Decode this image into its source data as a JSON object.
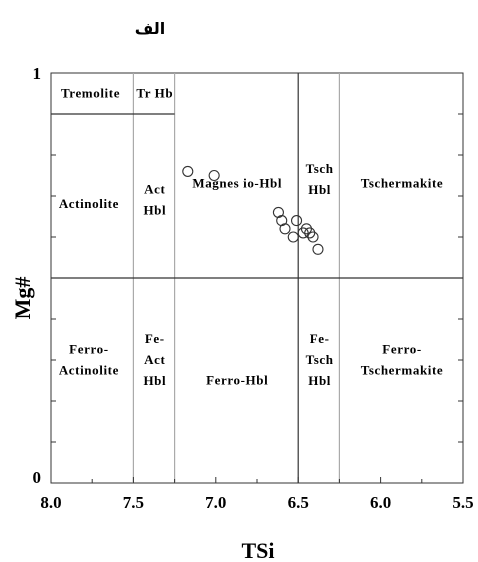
{
  "heading": "الف",
  "chart_data": {
    "type": "scatter",
    "title": "الف",
    "xlabel": "TSi",
    "ylabel": "Mg#",
    "xlim": [
      8.0,
      5.5
    ],
    "ylim": [
      0,
      1
    ],
    "x_reversed": true,
    "x_ticks": [
      "8.0",
      "7.5",
      "7.0",
      "6.5",
      "6.0",
      "5.5"
    ],
    "y_ticks": [
      "0",
      "1"
    ],
    "grid": false,
    "legend": "none",
    "divider_x": [
      7.5,
      7.25,
      6.5,
      6.25
    ],
    "divider_y": [
      0.5,
      0.9
    ],
    "fields": [
      {
        "lines": [
          "Tremolite"
        ],
        "x": 7.76,
        "y": 0.95
      },
      {
        "lines": [
          "Tr Hb"
        ],
        "x": 7.37,
        "y": 0.95
      },
      {
        "lines": [
          "Actinolite"
        ],
        "x": 7.77,
        "y": 0.68
      },
      {
        "lines": [
          "Act",
          "Hbl"
        ],
        "x": 7.37,
        "y": 0.69
      },
      {
        "lines": [
          "Magnes io-Hbl"
        ],
        "x": 6.87,
        "y": 0.73
      },
      {
        "lines": [
          "Tsch",
          "Hbl"
        ],
        "x": 6.37,
        "y": 0.74
      },
      {
        "lines": [
          "Tschermakite"
        ],
        "x": 5.87,
        "y": 0.73
      },
      {
        "lines": [
          "Ferro-",
          "Actinolite"
        ],
        "x": 7.77,
        "y": 0.3
      },
      {
        "lines": [
          "Fe-",
          "Act",
          "Hbl"
        ],
        "x": 7.37,
        "y": 0.3
      },
      {
        "lines": [
          "Ferro-Hbl"
        ],
        "x": 6.87,
        "y": 0.25
      },
      {
        "lines": [
          "Fe-",
          "Tsch",
          "Hbl"
        ],
        "x": 6.37,
        "y": 0.3
      },
      {
        "lines": [
          "Ferro-",
          "Tschermakite"
        ],
        "x": 5.87,
        "y": 0.3
      }
    ],
    "points": [
      {
        "x": 7.17,
        "y": 0.76
      },
      {
        "x": 7.01,
        "y": 0.75
      },
      {
        "x": 6.62,
        "y": 0.66
      },
      {
        "x": 6.6,
        "y": 0.64
      },
      {
        "x": 6.58,
        "y": 0.62
      },
      {
        "x": 6.53,
        "y": 0.6
      },
      {
        "x": 6.51,
        "y": 0.64
      },
      {
        "x": 6.47,
        "y": 0.61
      },
      {
        "x": 6.45,
        "y": 0.62
      },
      {
        "x": 6.43,
        "y": 0.61
      },
      {
        "x": 6.41,
        "y": 0.6
      },
      {
        "x": 6.38,
        "y": 0.57
      }
    ]
  }
}
